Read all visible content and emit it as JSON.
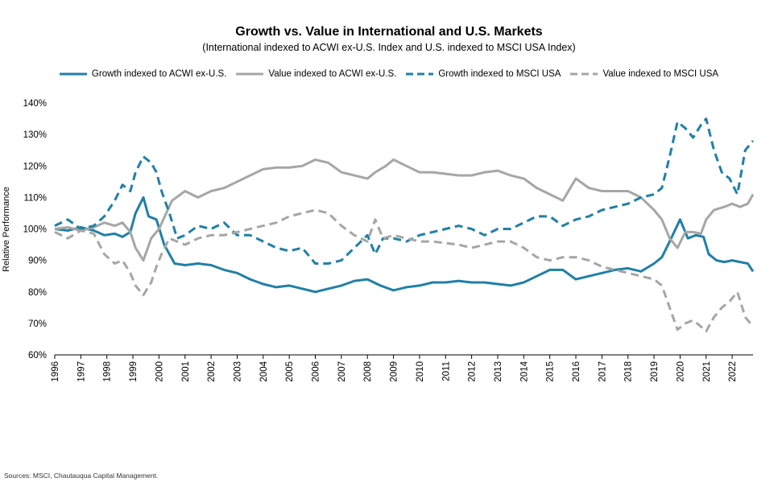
{
  "source_note": "Sources: MSCI, Chautauqua Capital Management.",
  "colors": {
    "growth": "#1f80a8",
    "value": "#a6a6a6"
  },
  "chart_data": {
    "type": "line",
    "title": "Growth vs. Value in International and U.S. Markets",
    "subtitle": "(International indexed to ACWI ex-U.S. Index and U.S. indexed to MSCI USA Index)",
    "xlabel": "",
    "ylabel": "Relative Performance",
    "xlim": [
      1996,
      2022.8
    ],
    "ylim": [
      60,
      140
    ],
    "x_ticks": [
      "1996",
      "1997",
      "1998",
      "1999",
      "2000",
      "2001",
      "2002",
      "2003",
      "2004",
      "2005",
      "2006",
      "2007",
      "2008",
      "2009",
      "2010",
      "2011",
      "2012",
      "2013",
      "2014",
      "2015",
      "2016",
      "2017",
      "2018",
      "2019",
      "2020",
      "2021",
      "2022"
    ],
    "y_ticks": [
      {
        "value": 60,
        "label": "60%"
      },
      {
        "value": 70,
        "label": "70%"
      },
      {
        "value": 80,
        "label": "80%"
      },
      {
        "value": 90,
        "label": "90%"
      },
      {
        "value": 100,
        "label": "100%"
      },
      {
        "value": 110,
        "label": "110%"
      },
      {
        "value": 120,
        "label": "120%"
      },
      {
        "value": 130,
        "label": "130%"
      },
      {
        "value": 140,
        "label": "140%"
      }
    ],
    "grid": false,
    "legend_position": "top",
    "series": [
      {
        "name": "Growth indexed to ACWI ex-U.S.",
        "color": "#1f80a8",
        "dash": "solid",
        "x": [
          1996,
          1996.5,
          1997,
          1997.5,
          1997.9,
          1998.3,
          1998.6,
          1998.9,
          1999.1,
          1999.4,
          1999.6,
          1999.9,
          2000.2,
          2000.6,
          2001,
          2001.5,
          2002,
          2002.5,
          2003,
          2003.5,
          2004,
          2004.5,
          2005,
          2005.5,
          2006,
          2006.5,
          2007,
          2007.5,
          2008,
          2008.5,
          2009,
          2009.5,
          2010,
          2010.5,
          2011,
          2011.5,
          2012,
          2012.5,
          2013,
          2013.5,
          2014,
          2014.5,
          2015,
          2015.5,
          2016,
          2016.5,
          2017,
          2017.5,
          2018,
          2018.5,
          2019,
          2019.3,
          2019.6,
          2019.8,
          2020,
          2020.3,
          2020.6,
          2020.9,
          2021.1,
          2021.4,
          2021.7,
          2022,
          2022.3,
          2022.6,
          2022.8
        ],
        "values": [
          100,
          99.5,
          100.5,
          99.5,
          98,
          98.5,
          97.5,
          99,
          105,
          110,
          104,
          103,
          95,
          89,
          88.5,
          89,
          88.5,
          87,
          86,
          84,
          82.5,
          81.5,
          82,
          81,
          80,
          81,
          82,
          83.5,
          84,
          82,
          80.5,
          81.5,
          82,
          83,
          83,
          83.5,
          83,
          83,
          82.5,
          82,
          83,
          85,
          87,
          87,
          84,
          85,
          86,
          87,
          87.5,
          86.5,
          89,
          91,
          96,
          99.5,
          103,
          97,
          98,
          97.5,
          92,
          90,
          89.5,
          90,
          89.5,
          89,
          86.5
        ]
      },
      {
        "name": "Value indexed to ACWI ex-U.S.",
        "color": "#a6a6a6",
        "dash": "solid",
        "x": [
          1996,
          1996.5,
          1997,
          1997.5,
          1997.9,
          1998.3,
          1998.6,
          1998.9,
          1999.1,
          1999.4,
          1999.7,
          2000,
          2000.5,
          2001,
          2001.5,
          2002,
          2002.5,
          2003,
          2003.5,
          2004,
          2004.5,
          2005,
          2005.5,
          2006,
          2006.5,
          2007,
          2007.5,
          2008,
          2008.3,
          2008.7,
          2009,
          2009.5,
          2010,
          2010.5,
          2011,
          2011.5,
          2012,
          2012.5,
          2013,
          2013.5,
          2014,
          2014.5,
          2015,
          2015.5,
          2016,
          2016.5,
          2017,
          2017.5,
          2018,
          2018.5,
          2019,
          2019.3,
          2019.6,
          2019.9,
          2020.2,
          2020.5,
          2020.8,
          2021,
          2021.3,
          2021.7,
          2022,
          2022.3,
          2022.6,
          2022.8
        ],
        "values": [
          100,
          100.5,
          99.5,
          100.5,
          102,
          101,
          102,
          99,
          94,
          90,
          97,
          100,
          109,
          112,
          110,
          112,
          113,
          115,
          117,
          119,
          119.5,
          119.5,
          120,
          122,
          121,
          118,
          117,
          116,
          118,
          120,
          122,
          120,
          118,
          118,
          117.5,
          117,
          117,
          118,
          118.5,
          117,
          116,
          113,
          111,
          109,
          116,
          113,
          112,
          112,
          112,
          110,
          106,
          103,
          97,
          94,
          99,
          99,
          98.5,
          103,
          106,
          107,
          108,
          107,
          108,
          111
        ]
      },
      {
        "name": "Growth indexed to MSCI USA",
        "color": "#1f80a8",
        "dash": "dashed",
        "x": [
          1996,
          1996.5,
          1997,
          1997.5,
          1997.9,
          1998.3,
          1998.6,
          1998.9,
          1999.1,
          1999.4,
          1999.7,
          1999.9,
          2000.1,
          2000.4,
          2000.7,
          2001,
          2001.5,
          2002,
          2002.5,
          2003,
          2003.5,
          2004,
          2004.5,
          2005,
          2005.5,
          2006,
          2006.5,
          2007,
          2007.5,
          2008,
          2008.3,
          2008.6,
          2009,
          2009.5,
          2010,
          2010.5,
          2011,
          2011.5,
          2012,
          2012.5,
          2013,
          2013.5,
          2014,
          2014.5,
          2015,
          2015.5,
          2016,
          2016.5,
          2017,
          2017.5,
          2018,
          2018.5,
          2019,
          2019.3,
          2019.6,
          2019.9,
          2020.2,
          2020.5,
          2020.8,
          2021,
          2021.3,
          2021.6,
          2021.9,
          2022.2,
          2022.5,
          2022.8
        ],
        "values": [
          101,
          103,
          100,
          101,
          104,
          109,
          114,
          112,
          118,
          123,
          121,
          118,
          112,
          105,
          97,
          98,
          101,
          100,
          102,
          98,
          98,
          96,
          94,
          93,
          94,
          89,
          89,
          90,
          94,
          98,
          92,
          97,
          97,
          96,
          98,
          99,
          100,
          101,
          100,
          98,
          100,
          100,
          102,
          104,
          104,
          101,
          103,
          104,
          106,
          107,
          108,
          110,
          111,
          113,
          123,
          134,
          132,
          129,
          133,
          135,
          125,
          118,
          116,
          111,
          125,
          128
        ]
      },
      {
        "name": "Value indexed to MSCI USA",
        "color": "#a6a6a6",
        "dash": "dashed",
        "x": [
          1996,
          1996.5,
          1997,
          1997.5,
          1997.9,
          1998.3,
          1998.6,
          1998.9,
          1999.1,
          1999.4,
          1999.7,
          1999.9,
          2000.1,
          2000.4,
          2000.7,
          2001,
          2001.5,
          2002,
          2002.5,
          2003,
          2003.5,
          2004,
          2004.5,
          2005,
          2005.5,
          2006,
          2006.5,
          2007,
          2007.5,
          2008,
          2008.3,
          2008.6,
          2009,
          2009.5,
          2010,
          2010.5,
          2011,
          2011.5,
          2012,
          2012.5,
          2013,
          2013.5,
          2014,
          2014.5,
          2015,
          2015.5,
          2016,
          2016.5,
          2017,
          2017.5,
          2018,
          2018.5,
          2019,
          2019.3,
          2019.6,
          2019.9,
          2020.2,
          2020.5,
          2020.8,
          2021,
          2021.3,
          2021.6,
          2021.9,
          2022.2,
          2022.5,
          2022.8
        ],
        "values": [
          99,
          97,
          99.5,
          98.5,
          92,
          89,
          90,
          86,
          82,
          79,
          83,
          88,
          92,
          97,
          96,
          95,
          97,
          98,
          98,
          99,
          100,
          101,
          102,
          104,
          105,
          106,
          105,
          101,
          98,
          96,
          103,
          97,
          98,
          97,
          96,
          96,
          95.5,
          95,
          94,
          95,
          96,
          96,
          94,
          91,
          90,
          91,
          91,
          90,
          88,
          87,
          86,
          85,
          84,
          82,
          75,
          68,
          70,
          71,
          69,
          67.5,
          72,
          75,
          77,
          80,
          72,
          69
        ]
      }
    ]
  }
}
